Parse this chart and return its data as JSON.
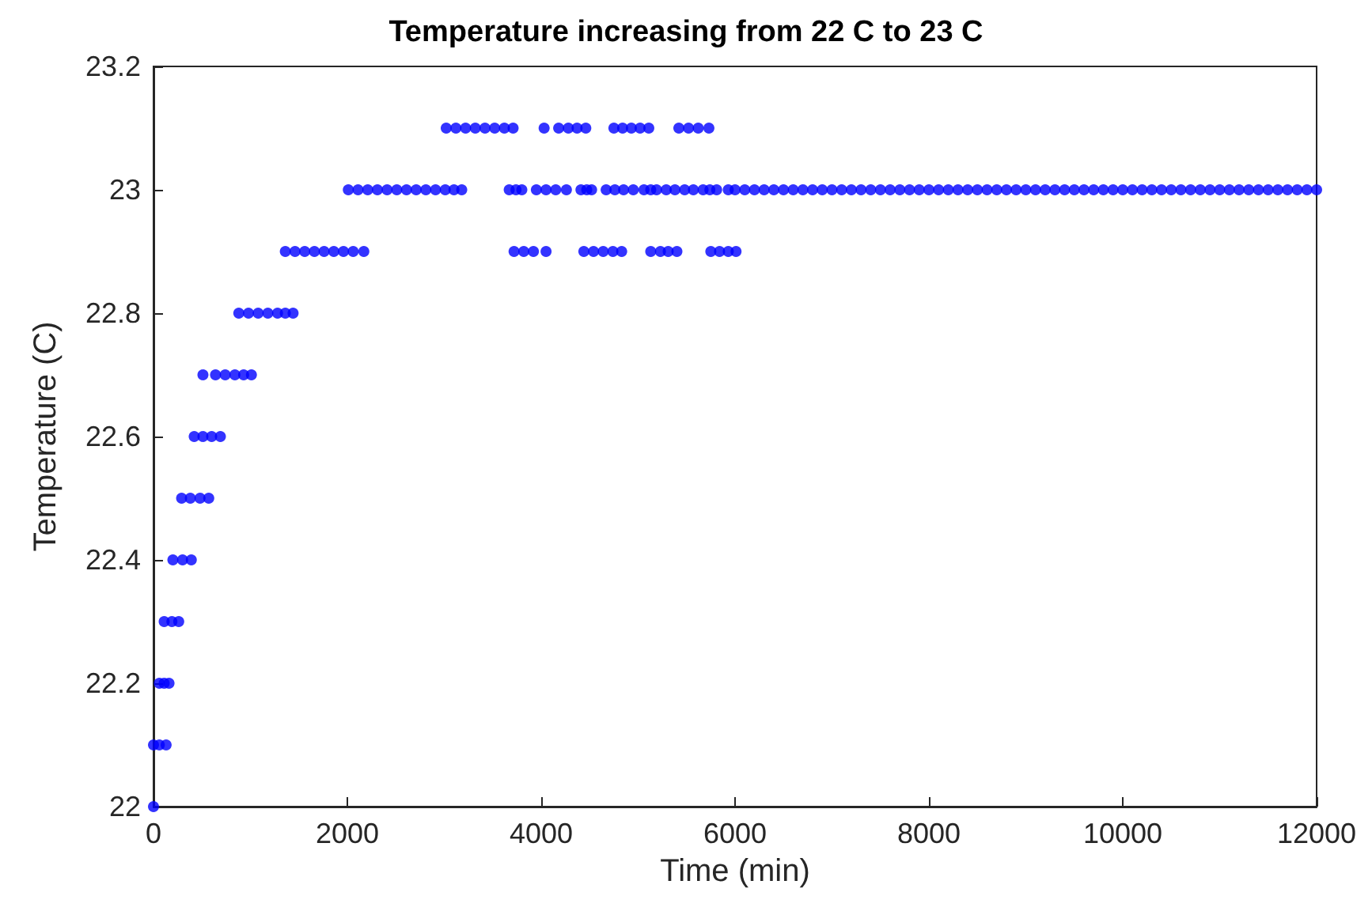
{
  "chart_data": {
    "type": "scatter",
    "title": "Temperature increasing from 22 C to 23 C",
    "xlabel": "Time (min)",
    "ylabel": "Temperature (C)",
    "xlim": [
      0,
      12000
    ],
    "xticks": [
      0,
      2000,
      4000,
      6000,
      8000,
      10000,
      12000
    ],
    "ylim": [
      22,
      23.2
    ],
    "yticks": [
      22,
      22.2,
      22.4,
      22.6,
      22.8,
      23,
      23.2
    ],
    "grid": false,
    "marker": "circle",
    "series": [
      {
        "color": "#0000ff",
        "x": [
          0,
          0,
          60,
          130,
          60,
          110,
          160,
          110,
          190,
          260,
          200,
          300,
          390,
          290,
          380,
          480,
          570,
          420,
          510,
          600,
          690,
          510,
          640,
          740,
          840,
          930,
          1010,
          880,
          980,
          1080,
          1180,
          1280,
          1360,
          1440,
          1360,
          1460,
          1560,
          1660,
          1760,
          1860,
          1960,
          2060,
          2170,
          3720,
          3820,
          3920,
          4050,
          4440,
          4540,
          4640,
          4740,
          4830,
          5130,
          5230,
          5310,
          5400,
          5750,
          5840,
          5930,
          6010,
          2010,
          2110,
          2210,
          2310,
          2410,
          2510,
          2610,
          2710,
          2810,
          2910,
          3010,
          3100,
          3180,
          3670,
          3740,
          3800,
          3950,
          4050,
          4150,
          4260,
          4410,
          4470,
          4520,
          4670,
          4760,
          4850,
          4950,
          5060,
          5130,
          5190,
          5290,
          5380,
          5480,
          5570,
          5670,
          5740,
          5810,
          5930,
          6000,
          6100,
          6200,
          6300,
          6400,
          6500,
          6600,
          6700,
          6800,
          6900,
          7000,
          7100,
          7200,
          7300,
          7400,
          7500,
          7600,
          7700,
          7800,
          7900,
          8000,
          8100,
          8200,
          8300,
          8400,
          8500,
          8600,
          8700,
          8800,
          8900,
          9000,
          9100,
          9200,
          9300,
          9400,
          9500,
          9600,
          9700,
          9800,
          9900,
          10000,
          10100,
          10200,
          10300,
          10400,
          10500,
          10600,
          10700,
          10800,
          10900,
          11000,
          11100,
          11200,
          11300,
          11400,
          11500,
          11600,
          11700,
          11800,
          11900,
          12000,
          3020,
          3120,
          3220,
          3320,
          3420,
          3520,
          3620,
          3710,
          4030,
          4180,
          4280,
          4370,
          4460,
          4750,
          4840,
          4930,
          5020,
          5110,
          5420,
          5520,
          5620,
          5730
        ],
        "values": [
          22,
          22.1,
          22.1,
          22.1,
          22.2,
          22.2,
          22.2,
          22.3,
          22.3,
          22.3,
          22.4,
          22.4,
          22.4,
          22.5,
          22.5,
          22.5,
          22.5,
          22.6,
          22.6,
          22.6,
          22.6,
          22.7,
          22.7,
          22.7,
          22.7,
          22.7,
          22.7,
          22.8,
          22.8,
          22.8,
          22.8,
          22.8,
          22.8,
          22.8,
          22.9,
          22.9,
          22.9,
          22.9,
          22.9,
          22.9,
          22.9,
          22.9,
          22.9,
          22.9,
          22.9,
          22.9,
          22.9,
          22.9,
          22.9,
          22.9,
          22.9,
          22.9,
          22.9,
          22.9,
          22.9,
          22.9,
          22.9,
          22.9,
          22.9,
          22.9,
          23,
          23,
          23,
          23,
          23,
          23,
          23,
          23,
          23,
          23,
          23,
          23,
          23,
          23,
          23,
          23,
          23,
          23,
          23,
          23,
          23,
          23,
          23,
          23,
          23,
          23,
          23,
          23,
          23,
          23,
          23,
          23,
          23,
          23,
          23,
          23,
          23,
          23,
          23,
          23,
          23,
          23,
          23,
          23,
          23,
          23,
          23,
          23,
          23,
          23,
          23,
          23,
          23,
          23,
          23,
          23,
          23,
          23,
          23,
          23,
          23,
          23,
          23,
          23,
          23,
          23,
          23,
          23,
          23,
          23,
          23,
          23,
          23,
          23,
          23,
          23,
          23,
          23,
          23,
          23,
          23,
          23,
          23,
          23,
          23,
          23,
          23,
          23,
          23,
          23,
          23,
          23,
          23,
          23,
          23,
          23,
          23,
          23,
          23,
          23.1,
          23.1,
          23.1,
          23.1,
          23.1,
          23.1,
          23.1,
          23.1,
          23.1,
          23.1,
          23.1,
          23.1,
          23.1,
          23.1,
          23.1,
          23.1,
          23.1,
          23.1,
          23.1,
          23.1,
          23.1,
          23.1
        ]
      }
    ]
  }
}
